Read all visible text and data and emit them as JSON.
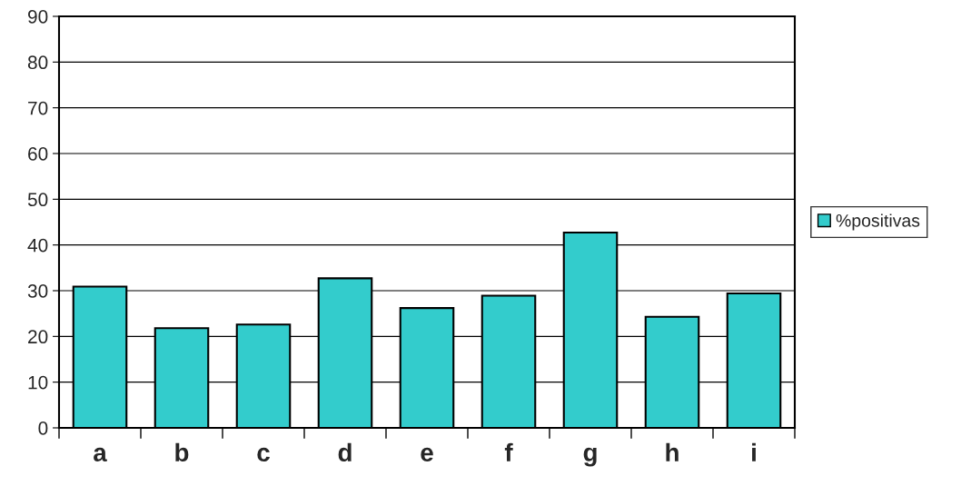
{
  "chart_data": {
    "type": "bar",
    "categories": [
      "a",
      "b",
      "c",
      "d",
      "e",
      "f",
      "g",
      "h",
      "i"
    ],
    "series": [
      {
        "name": "%positivas",
        "color": "#33cccc",
        "values": [
          30.9,
          21.8,
          22.6,
          32.7,
          26.2,
          28.9,
          42.7,
          24.3,
          29.4
        ]
      }
    ],
    "ylim": [
      0,
      90
    ],
    "yticks": [
      0,
      10,
      20,
      30,
      40,
      50,
      60,
      70,
      80,
      90
    ],
    "grid": "y",
    "legend": "right"
  }
}
